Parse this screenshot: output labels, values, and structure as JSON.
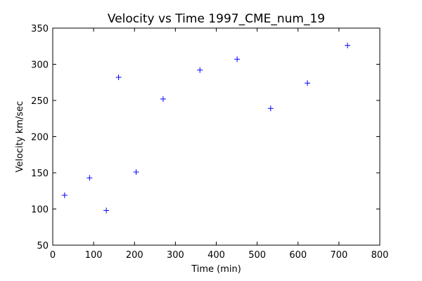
{
  "chart_data": {
    "type": "scatter",
    "title": "Velocity vs Time 1997_CME_num_19",
    "xlabel": "Time (min)",
    "ylabel": "Velocity km/sec",
    "xlim": [
      0,
      800
    ],
    "ylim": [
      50,
      350
    ],
    "xticks": [
      0,
      100,
      200,
      300,
      400,
      500,
      600,
      700,
      800
    ],
    "yticks": [
      50,
      100,
      150,
      200,
      250,
      300,
      350
    ],
    "grid": false,
    "marker": "+",
    "marker_color": "#0000ff",
    "series": [
      {
        "x": [
          29,
          90,
          131,
          161,
          204,
          270,
          360,
          451,
          533,
          623,
          721
        ],
        "y": [
          119,
          143,
          98,
          282,
          151,
          252,
          292,
          307,
          239,
          274,
          326
        ]
      }
    ]
  }
}
